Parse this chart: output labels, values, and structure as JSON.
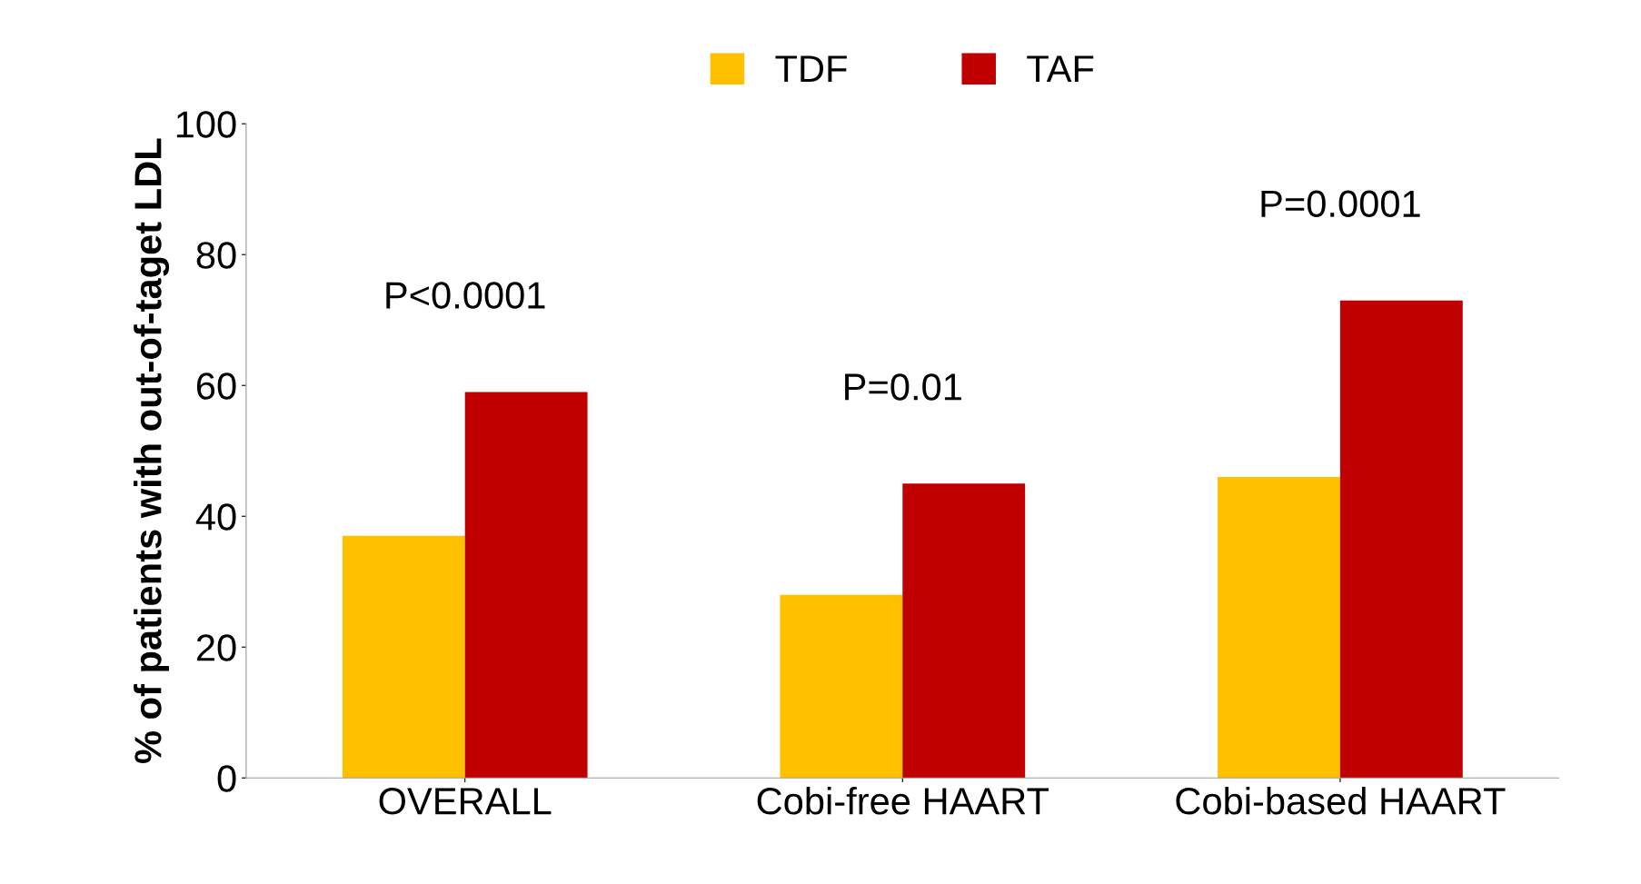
{
  "chart_data": {
    "type": "bar",
    "ylabel": "% of patients with out-of-taget LDL",
    "categories": [
      "OVERALL",
      "Cobi-free HAART",
      "Cobi-based HAART"
    ],
    "series": [
      {
        "name": "TDF",
        "color": "#ffc000",
        "values": [
          37,
          28,
          46
        ]
      },
      {
        "name": "TAF",
        "color": "#c00000",
        "values": [
          59,
          45,
          73
        ]
      }
    ],
    "ylim": [
      0,
      100
    ],
    "yticks": [
      0,
      20,
      40,
      60,
      80,
      100
    ],
    "grid": false,
    "legend": "top",
    "annotations": [
      "P<0.0001",
      "P=0.01",
      "P=0.0001"
    ]
  }
}
